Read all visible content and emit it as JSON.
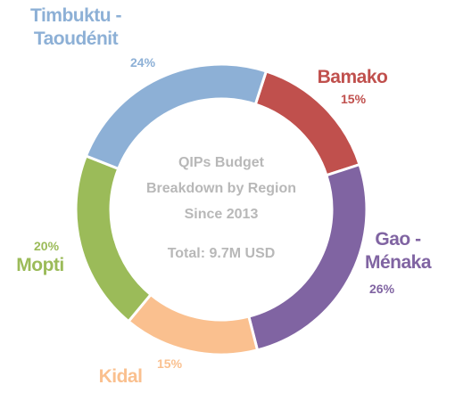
{
  "chart_data": {
    "type": "donut",
    "title_lines": [
      "QIPs Budget",
      "Breakdown by Region",
      "Since 2013"
    ],
    "total": "Total: 9.7M USD",
    "categories": [
      "Bamako",
      "Gao - Ménaka",
      "Kidal",
      "Mopti",
      "Timbuktu - Taoudénit"
    ],
    "values": [
      15,
      26,
      15,
      20,
      24
    ],
    "value_labels": [
      "15%",
      "26%",
      "15%",
      "20%",
      "24%"
    ],
    "colors": [
      "#c0504d",
      "#8064a2",
      "#fac08f",
      "#9bbb59",
      "#8db0d6"
    ]
  }
}
